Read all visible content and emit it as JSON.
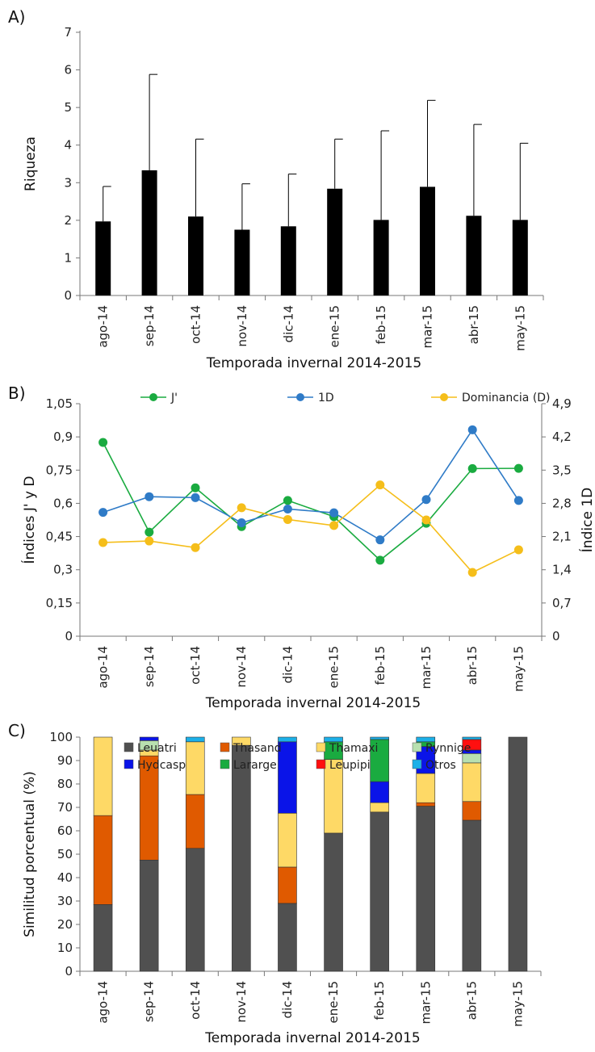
{
  "chart_data": [
    {
      "type": "bar",
      "panel_label": "A)",
      "xlabel": "Temporada invernal 2014-2015",
      "ylabel": "Riqueza",
      "ylim": [
        0,
        7
      ],
      "yticks": [
        0,
        1,
        2,
        3,
        4,
        5,
        6,
        7
      ],
      "categories": [
        "ago-14",
        "sep-14",
        "oct-14",
        "nov-14",
        "dic-14",
        "ene-15",
        "feb-15",
        "mar-15",
        "abr-15",
        "may-15"
      ],
      "values": [
        1.97,
        3.33,
        2.1,
        1.75,
        1.84,
        2.84,
        2.01,
        2.89,
        2.12,
        2.01
      ],
      "error_upper": [
        2.9,
        5.88,
        4.16,
        2.97,
        3.23,
        4.16,
        4.38,
        5.19,
        4.55,
        4.05
      ],
      "colors": {
        "bar": "#000000"
      }
    },
    {
      "type": "line",
      "panel_label": "B)",
      "xlabel": "Temporada invernal 2014-2015",
      "ylabel": "Índices J' y D",
      "ylabel_right": "Índice 1D",
      "ylim": [
        0,
        1.05
      ],
      "yticks": [
        "0",
        "0,15",
        "0,3",
        "0,45",
        "0,6",
        "0,75",
        "0,9",
        "1,05"
      ],
      "ylim_right": [
        0,
        4.9
      ],
      "yticks_right": [
        "0",
        "0,7",
        "1,4",
        "2,1",
        "2,8",
        "3,5",
        "4,2",
        "4,9"
      ],
      "categories": [
        "ago-14",
        "sep-14",
        "oct-14",
        "nov-14",
        "dic-14",
        "ene-15",
        "feb-15",
        "mar-15",
        "abr-15",
        "may-15"
      ],
      "legend_position": "top",
      "series": [
        {
          "name": "J'",
          "axis": "left",
          "color": "#1aab40",
          "values": [
            0.875,
            0.47,
            0.67,
            0.495,
            0.613,
            0.54,
            0.343,
            0.51,
            0.757,
            0.758
          ]
        },
        {
          "name": "1D",
          "axis": "right",
          "color": "#2f7bc7",
          "values": [
            2.61,
            2.94,
            2.92,
            2.39,
            2.68,
            2.6,
            2.03,
            2.88,
            4.35,
            2.86
          ]
        },
        {
          "name": "Dominancia (D)",
          "axis": "left",
          "color": "#f5be1a",
          "values": [
            0.423,
            0.43,
            0.4,
            0.58,
            0.527,
            0.5,
            0.683,
            0.525,
            0.288,
            0.39
          ]
        }
      ]
    },
    {
      "type": "bar",
      "stacked": true,
      "panel_label": "C)",
      "xlabel": "Temporada invernal 2014-2015",
      "ylabel": "Similitud porcentual (%)",
      "ylim": [
        0,
        100
      ],
      "yticks": [
        0,
        10,
        20,
        30,
        40,
        50,
        60,
        70,
        80,
        90,
        100
      ],
      "categories": [
        "ago-14",
        "sep-14",
        "oct-14",
        "nov-14",
        "dic-14",
        "ene-15",
        "feb-15",
        "mar-15",
        "abr-15",
        "may-15"
      ],
      "legend_position": "top",
      "series": [
        {
          "name": "Leuatri",
          "color": "#505050",
          "values": [
            28.5,
            47.5,
            52.5,
            96.5,
            29,
            59,
            68,
            70.5,
            64.5,
            100
          ]
        },
        {
          "name": "Thasand",
          "color": "#e05a00",
          "values": [
            38,
            44.5,
            23,
            0,
            15.5,
            0,
            0,
            1.5,
            8,
            0
          ]
        },
        {
          "name": "Thamaxi",
          "color": "#fed966",
          "values": [
            33.5,
            2.5,
            22.5,
            3.5,
            23,
            31.5,
            4,
            12.5,
            16.5,
            0
          ]
        },
        {
          "name": "Rynnige",
          "color": "#b8e0b0",
          "values": [
            0,
            4,
            0,
            0,
            0,
            0,
            0,
            0,
            4,
            0
          ]
        },
        {
          "name": "Hydcasp",
          "color": "#0a14e8",
          "values": [
            0,
            1.5,
            0,
            0,
            30.5,
            0,
            9,
            11.5,
            1.5,
            0
          ]
        },
        {
          "name": "Lararge",
          "color": "#1aab40",
          "values": [
            0,
            0,
            0,
            0,
            0,
            7.5,
            18,
            2,
            0,
            0
          ]
        },
        {
          "name": "Leupipi",
          "color": "#ff0f0f",
          "values": [
            0,
            0,
            0,
            0,
            0,
            0,
            0,
            0,
            4.5,
            0
          ]
        },
        {
          "name": "Otros",
          "color": "#1cb0e8",
          "values": [
            0,
            0,
            2,
            0,
            2,
            2,
            1,
            2,
            1,
            0
          ]
        }
      ]
    }
  ]
}
